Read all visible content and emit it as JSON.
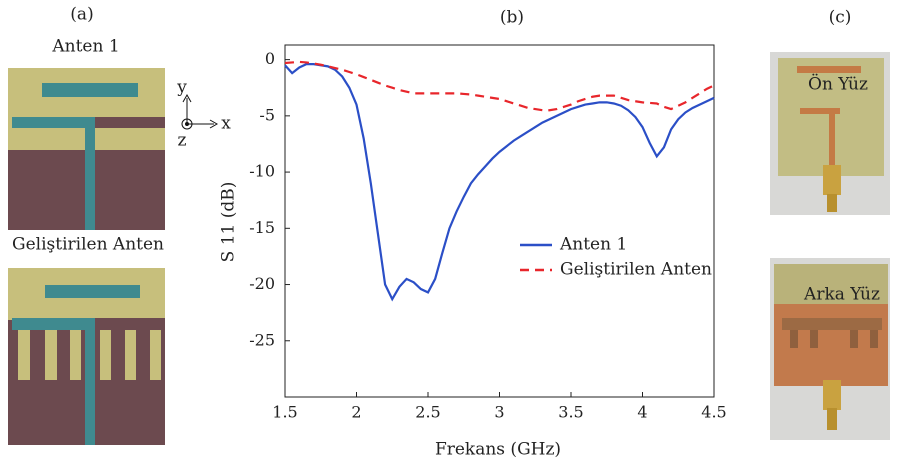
{
  "figure": {
    "panel_labels": [
      "(a)",
      "(b)",
      "(c)"
    ],
    "antenna_titles": [
      "Anten 1",
      "Geliştirilen Anten"
    ],
    "axis_glyphs": [
      "y",
      "x",
      "z"
    ],
    "photo_labels": [
      "Ön Yüz",
      "Arka Yüz"
    ]
  },
  "chart_data": {
    "type": "line",
    "x_label": "Frekans (GHz)",
    "y_label": "S 11 (dB)",
    "x": [
      1.5,
      1.55,
      1.6,
      1.65,
      1.7,
      1.75,
      1.8,
      1.85,
      1.9,
      1.95,
      2.0,
      2.05,
      2.1,
      2.15,
      2.2,
      2.25,
      2.3,
      2.35,
      2.4,
      2.45,
      2.5,
      2.55,
      2.6,
      2.65,
      2.7,
      2.75,
      2.8,
      2.85,
      2.9,
      2.95,
      3.0,
      3.05,
      3.1,
      3.15,
      3.2,
      3.25,
      3.3,
      3.35,
      3.4,
      3.45,
      3.5,
      3.55,
      3.6,
      3.65,
      3.7,
      3.75,
      3.8,
      3.85,
      3.9,
      3.95,
      4.0,
      4.05,
      4.1,
      4.15,
      4.2,
      4.25,
      4.3,
      4.35,
      4.4,
      4.45,
      4.5
    ],
    "series": [
      {
        "name": "Anten 1",
        "color": "#2b4fc7",
        "dash": "solid",
        "values": [
          -0.5,
          -1.2,
          -0.7,
          -0.4,
          -0.4,
          -0.5,
          -0.6,
          -0.9,
          -1.5,
          -2.5,
          -4,
          -7,
          -11,
          -15.5,
          -20,
          -21.3,
          -20.2,
          -19.5,
          -19.8,
          -20.4,
          -20.7,
          -19.5,
          -17.2,
          -15,
          -13.5,
          -12.2,
          -11,
          -10.2,
          -9.5,
          -8.8,
          -8.2,
          -7.7,
          -7.2,
          -6.8,
          -6.4,
          -6,
          -5.6,
          -5.3,
          -5,
          -4.7,
          -4.4,
          -4.2,
          -4,
          -3.9,
          -3.8,
          -3.8,
          -3.9,
          -4.1,
          -4.5,
          -5.1,
          -6,
          -7.4,
          -8.6,
          -7.8,
          -6.2,
          -5.3,
          -4.7,
          -4.3,
          -4,
          -3.7,
          -3.4
        ]
      },
      {
        "name": "Geliştirilen Anten",
        "color": "#e8262b",
        "dash": "dashed",
        "values": [
          -0.3,
          -0.25,
          -0.2,
          -0.25,
          -0.35,
          -0.45,
          -0.6,
          -0.75,
          -0.9,
          -1.1,
          -1.3,
          -1.55,
          -1.8,
          -2.05,
          -2.3,
          -2.5,
          -2.7,
          -2.85,
          -3,
          -3,
          -3,
          -3,
          -3,
          -3,
          -3,
          -3.05,
          -3.1,
          -3.2,
          -3.3,
          -3.4,
          -3.5,
          -3.7,
          -3.9,
          -4.1,
          -4.3,
          -4.4,
          -4.5,
          -4.5,
          -4.4,
          -4.2,
          -4,
          -3.7,
          -3.5,
          -3.3,
          -3.2,
          -3.2,
          -3.2,
          -3.4,
          -3.6,
          -3.7,
          -3.8,
          -3.85,
          -3.9,
          -4.2,
          -4.4,
          -4.1,
          -3.8,
          -3.4,
          -3,
          -2.6,
          -2.3
        ]
      }
    ],
    "xlim": [
      1.5,
      4.5
    ],
    "xticks": [
      1.5,
      2,
      2.5,
      3,
      3.5,
      4,
      4.5
    ],
    "ylim": [
      -30,
      1.3
    ],
    "yticks": [
      0,
      -5,
      -10,
      -15,
      -20,
      -25
    ],
    "grid": false,
    "legend": "center"
  }
}
